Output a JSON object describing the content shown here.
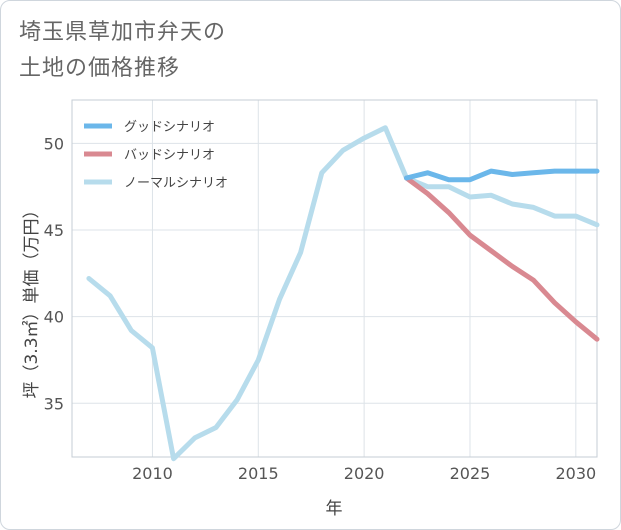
{
  "title": {
    "line1": "埼玉県草加市弁天の",
    "line2": "土地の価格推移"
  },
  "chart_data": {
    "type": "line",
    "xlabel": "年",
    "ylabel": "坪（3.3㎡）単価（万円）",
    "xlim": [
      2006.2,
      2031
    ],
    "ylim": [
      31.9,
      52.5
    ],
    "x_ticks": [
      2010,
      2015,
      2020,
      2025,
      2030
    ],
    "y_ticks": [
      35,
      40,
      45,
      50
    ],
    "grid": true,
    "legend_position": "top-left",
    "series": [
      {
        "name": "グッドシナリオ",
        "color": "#6bb7ea",
        "x": [
          2022,
          2023,
          2024,
          2025,
          2026,
          2027,
          2028,
          2029,
          2030,
          2031
        ],
        "y": [
          48.0,
          48.3,
          47.9,
          47.9,
          48.4,
          48.2,
          48.3,
          48.4,
          48.4,
          48.4
        ]
      },
      {
        "name": "バッドシナリオ",
        "color": "#d98991",
        "x": [
          2022,
          2023,
          2024,
          2025,
          2026,
          2027,
          2028,
          2029,
          2030,
          2031
        ],
        "y": [
          48.0,
          47.1,
          46.0,
          44.7,
          43.8,
          42.9,
          42.1,
          40.8,
          39.7,
          38.7
        ]
      },
      {
        "name": "ノーマルシナリオ",
        "color": "#b7dcec",
        "x": [
          2007,
          2008,
          2009,
          2010,
          2011,
          2012,
          2013,
          2014,
          2015,
          2016,
          2017,
          2018,
          2019,
          2020,
          2021,
          2022,
          2023,
          2024,
          2025,
          2026,
          2027,
          2028,
          2029,
          2030,
          2031
        ],
        "y": [
          42.2,
          41.2,
          39.2,
          38.2,
          31.8,
          33.0,
          33.6,
          35.2,
          37.5,
          41.0,
          43.7,
          48.3,
          49.6,
          50.3,
          50.9,
          48.0,
          47.5,
          47.5,
          46.9,
          47.0,
          46.5,
          46.3,
          45.8,
          45.8,
          45.3
        ]
      }
    ]
  }
}
